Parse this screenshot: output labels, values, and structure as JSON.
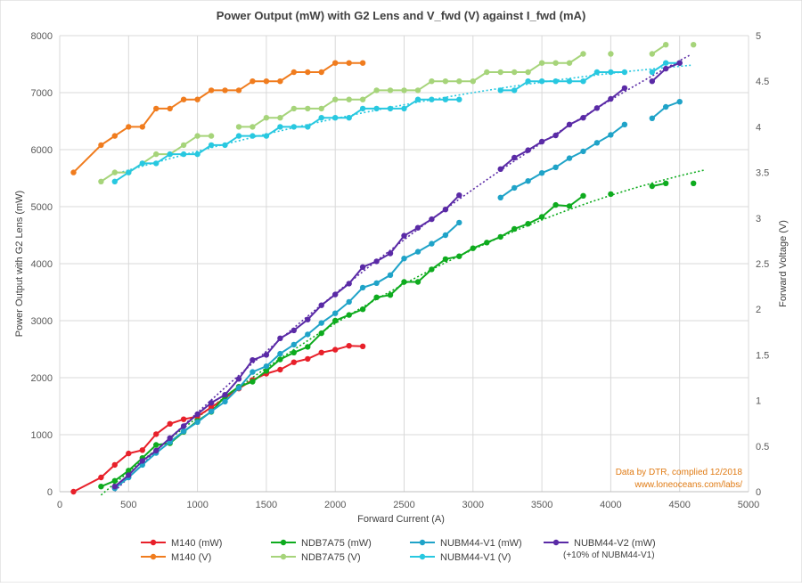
{
  "chart_data": {
    "type": "line",
    "title": "Power Output (mW) with G2 Lens and V_fwd (V) against I_fwd (mA)",
    "xlabel": "Forward Current (A)",
    "ylabel_left": "Power Output with G2 Lens (mW)",
    "ylabel_right": "Forward Voltage (V)",
    "xlim": [
      0,
      5000
    ],
    "ylim_left": [
      0,
      8000
    ],
    "ylim_right": [
      0,
      5
    ],
    "x_ticks": [
      "0",
      "500",
      "1000",
      "1500",
      "2000",
      "2500",
      "3000",
      "3500",
      "4000",
      "4500",
      "5000"
    ],
    "y_left_ticks": [
      "0",
      "1000",
      "2000",
      "3000",
      "4000",
      "5000",
      "6000",
      "7000",
      "8000"
    ],
    "y_right_ticks": [
      "0",
      "0.5",
      "1",
      "1.5",
      "2",
      "2.5",
      "3",
      "3.5",
      "4",
      "4.5",
      "5"
    ],
    "grid": true,
    "legend_position": "bottom",
    "annotation": [
      "Data by DTR, complied 12/2018",
      "www.loneoceans.com/labs/"
    ],
    "series": [
      {
        "name": "M140 (mW)",
        "axis": "left",
        "color": "#e8202a",
        "trend": false,
        "points": [
          [
            100,
            0
          ],
          [
            300,
            250
          ],
          [
            400,
            470
          ],
          [
            500,
            670
          ],
          [
            600,
            730
          ],
          [
            700,
            1010
          ],
          [
            800,
            1190
          ],
          [
            900,
            1270
          ],
          [
            1000,
            1320
          ],
          [
            1100,
            1480
          ],
          [
            1200,
            1640
          ],
          [
            1300,
            1810
          ],
          [
            1400,
            1960
          ],
          [
            1500,
            2070
          ],
          [
            1600,
            2140
          ],
          [
            1700,
            2270
          ],
          [
            1800,
            2330
          ],
          [
            1900,
            2440
          ],
          [
            2000,
            2490
          ],
          [
            2100,
            2560
          ],
          [
            2200,
            2550
          ]
        ]
      },
      {
        "name": "M140 (V)",
        "axis": "right",
        "color": "#f07c1e",
        "trend": false,
        "points": [
          [
            100,
            3.5
          ],
          [
            300,
            3.8
          ],
          [
            400,
            3.9
          ],
          [
            500,
            4.0
          ],
          [
            600,
            4.0
          ],
          [
            700,
            4.2
          ],
          [
            800,
            4.2
          ],
          [
            900,
            4.3
          ],
          [
            1000,
            4.3
          ],
          [
            1100,
            4.4
          ],
          [
            1200,
            4.4
          ],
          [
            1300,
            4.4
          ],
          [
            1400,
            4.5
          ],
          [
            1500,
            4.5
          ],
          [
            1600,
            4.5
          ],
          [
            1700,
            4.6
          ],
          [
            1800,
            4.6
          ],
          [
            1900,
            4.6
          ],
          [
            2000,
            4.7
          ],
          [
            2100,
            4.7
          ],
          [
            2200,
            4.7
          ]
        ]
      },
      {
        "name": "NDB7A75 (mW)",
        "axis": "left",
        "color": "#0eab1e",
        "trend": true,
        "points": [
          [
            300,
            90
          ],
          [
            400,
            190
          ],
          [
            500,
            370
          ],
          [
            600,
            590
          ],
          [
            700,
            820
          ],
          [
            800,
            850
          ],
          [
            900,
            1050
          ],
          [
            1000,
            1240
          ],
          [
            1100,
            1400
          ],
          [
            1200,
            1670
          ],
          [
            1300,
            1840
          ],
          [
            1400,
            1930
          ],
          [
            1500,
            2120
          ],
          [
            1600,
            2320
          ],
          [
            1700,
            2440
          ],
          [
            1800,
            2540
          ],
          [
            1900,
            2780
          ],
          [
            2000,
            3000
          ],
          [
            2100,
            3100
          ],
          [
            2200,
            3200
          ],
          [
            2300,
            3410
          ],
          [
            2400,
            3450
          ],
          [
            2500,
            3680
          ],
          [
            2600,
            3680
          ],
          [
            2700,
            3900
          ],
          [
            2800,
            4080
          ],
          [
            2900,
            4130
          ],
          [
            3000,
            4270
          ],
          [
            3100,
            4370
          ],
          [
            3200,
            4470
          ],
          [
            3300,
            4610
          ],
          [
            3400,
            4700
          ],
          [
            3500,
            4820
          ],
          [
            3600,
            5030
          ],
          [
            3700,
            5010
          ],
          [
            3800,
            5190
          ],
          [
            null,
            null
          ],
          [
            4000,
            5220
          ],
          [
            null,
            null
          ],
          [
            4300,
            5360
          ],
          [
            4400,
            5410
          ],
          [
            null,
            null
          ],
          [
            4600,
            5410
          ]
        ]
      },
      {
        "name": "NDB7A75 (V)",
        "axis": "right",
        "color": "#a6d47a",
        "trend": false,
        "points": [
          [
            300,
            3.4
          ],
          [
            400,
            3.5
          ],
          [
            500,
            3.5
          ],
          [
            600,
            3.6
          ],
          [
            700,
            3.7
          ],
          [
            800,
            3.7
          ],
          [
            900,
            3.8
          ],
          [
            1000,
            3.9
          ],
          [
            1100,
            3.9
          ],
          [
            null,
            null
          ],
          [
            1300,
            4.0
          ],
          [
            1400,
            4.0
          ],
          [
            1500,
            4.1
          ],
          [
            1600,
            4.1
          ],
          [
            1700,
            4.2
          ],
          [
            1800,
            4.2
          ],
          [
            1900,
            4.2
          ],
          [
            2000,
            4.3
          ],
          [
            2100,
            4.3
          ],
          [
            2200,
            4.3
          ],
          [
            2300,
            4.4
          ],
          [
            2400,
            4.4
          ],
          [
            2500,
            4.4
          ],
          [
            2600,
            4.4
          ],
          [
            2700,
            4.5
          ],
          [
            2800,
            4.5
          ],
          [
            2900,
            4.5
          ],
          [
            3000,
            4.5
          ],
          [
            3100,
            4.6
          ],
          [
            3200,
            4.6
          ],
          [
            3300,
            4.6
          ],
          [
            3400,
            4.6
          ],
          [
            3500,
            4.7
          ],
          [
            3600,
            4.7
          ],
          [
            3700,
            4.7
          ],
          [
            3800,
            4.8
          ],
          [
            null,
            null
          ],
          [
            4000,
            4.8
          ],
          [
            null,
            null
          ],
          [
            4300,
            4.8
          ],
          [
            4400,
            4.9
          ],
          [
            null,
            null
          ],
          [
            4600,
            4.9
          ]
        ]
      },
      {
        "name": "NUBM44-V1 (mW)",
        "axis": "left",
        "color": "#1fa3c8",
        "trend": false,
        "points": [
          [
            400,
            60
          ],
          [
            500,
            250
          ],
          [
            600,
            470
          ],
          [
            700,
            680
          ],
          [
            800,
            870
          ],
          [
            900,
            1060
          ],
          [
            1000,
            1220
          ],
          [
            1100,
            1410
          ],
          [
            1200,
            1580
          ],
          [
            1300,
            1820
          ],
          [
            1400,
            2100
          ],
          [
            1500,
            2200
          ],
          [
            1600,
            2420
          ],
          [
            1700,
            2580
          ],
          [
            1800,
            2760
          ],
          [
            1900,
            2960
          ],
          [
            2000,
            3130
          ],
          [
            2100,
            3330
          ],
          [
            2200,
            3580
          ],
          [
            2300,
            3660
          ],
          [
            2400,
            3800
          ],
          [
            2500,
            4090
          ],
          [
            2600,
            4210
          ],
          [
            2700,
            4350
          ],
          [
            2800,
            4500
          ],
          [
            2900,
            4720
          ],
          [
            null,
            null
          ],
          [
            3200,
            5160
          ],
          [
            3300,
            5330
          ],
          [
            3400,
            5450
          ],
          [
            3500,
            5590
          ],
          [
            3600,
            5690
          ],
          [
            3700,
            5850
          ],
          [
            3800,
            5970
          ],
          [
            3900,
            6120
          ],
          [
            4000,
            6260
          ],
          [
            4100,
            6440
          ],
          [
            null,
            null
          ],
          [
            4300,
            6550
          ],
          [
            4400,
            6750
          ],
          [
            4500,
            6840
          ]
        ]
      },
      {
        "name": "NUBM44-V1 (V)",
        "axis": "right",
        "color": "#28c8e0",
        "trend": true,
        "points": [
          [
            400,
            3.4
          ],
          [
            500,
            3.5
          ],
          [
            600,
            3.6
          ],
          [
            700,
            3.6
          ],
          [
            800,
            3.7
          ],
          [
            900,
            3.7
          ],
          [
            1000,
            3.7
          ],
          [
            1100,
            3.8
          ],
          [
            1200,
            3.8
          ],
          [
            1300,
            3.9
          ],
          [
            1400,
            3.9
          ],
          [
            1500,
            3.9
          ],
          [
            1600,
            4.0
          ],
          [
            1700,
            4.0
          ],
          [
            1800,
            4.0
          ],
          [
            1900,
            4.1
          ],
          [
            2000,
            4.1
          ],
          [
            2100,
            4.1
          ],
          [
            2200,
            4.2
          ],
          [
            2300,
            4.2
          ],
          [
            2400,
            4.2
          ],
          [
            2500,
            4.2
          ],
          [
            2600,
            4.3
          ],
          [
            2700,
            4.3
          ],
          [
            2800,
            4.3
          ],
          [
            2900,
            4.3
          ],
          [
            null,
            null
          ],
          [
            3200,
            4.4
          ],
          [
            3300,
            4.4
          ],
          [
            3400,
            4.5
          ],
          [
            3500,
            4.5
          ],
          [
            3600,
            4.5
          ],
          [
            3700,
            4.5
          ],
          [
            3800,
            4.5
          ],
          [
            3900,
            4.6
          ],
          [
            4000,
            4.6
          ],
          [
            4100,
            4.6
          ],
          [
            null,
            null
          ],
          [
            4300,
            4.6
          ],
          [
            4400,
            4.7
          ],
          [
            4500,
            4.7
          ]
        ]
      },
      {
        "name": "NUBM44-V2 (mW)",
        "axis": "left",
        "color": "#5a2aa6",
        "trend": true,
        "points": [
          [
            400,
            90
          ],
          [
            500,
            290
          ],
          [
            600,
            540
          ],
          [
            700,
            720
          ],
          [
            800,
            940
          ],
          [
            900,
            1150
          ],
          [
            1000,
            1360
          ],
          [
            1100,
            1560
          ],
          [
            1200,
            1700
          ],
          [
            1300,
            1980
          ],
          [
            1400,
            2310
          ],
          [
            1500,
            2400
          ],
          [
            1600,
            2690
          ],
          [
            1700,
            2830
          ],
          [
            1800,
            3020
          ],
          [
            1900,
            3270
          ],
          [
            2000,
            3460
          ],
          [
            2100,
            3650
          ],
          [
            2200,
            3940
          ],
          [
            2300,
            4040
          ],
          [
            2400,
            4180
          ],
          [
            2500,
            4490
          ],
          [
            2600,
            4630
          ],
          [
            2700,
            4780
          ],
          [
            2800,
            4950
          ],
          [
            2900,
            5200
          ],
          [
            null,
            null
          ],
          [
            3200,
            5660
          ],
          [
            3300,
            5860
          ],
          [
            3400,
            5990
          ],
          [
            3500,
            6140
          ],
          [
            3600,
            6250
          ],
          [
            3700,
            6440
          ],
          [
            3800,
            6560
          ],
          [
            3900,
            6730
          ],
          [
            4000,
            6890
          ],
          [
            4100,
            7080
          ],
          [
            null,
            null
          ],
          [
            4300,
            7200
          ],
          [
            4400,
            7420
          ],
          [
            4500,
            7520
          ]
        ]
      }
    ],
    "legend": [
      {
        "label": "M140 (mW)",
        "color": "#e8202a"
      },
      {
        "label": "NDB7A75 (mW)",
        "color": "#0eab1e"
      },
      {
        "label": "NUBM44-V1 (mW)",
        "color": "#1fa3c8"
      },
      {
        "label": "NUBM44-V2 (mW)",
        "color": "#5a2aa6"
      },
      {
        "label": "M140 (V)",
        "color": "#f07c1e"
      },
      {
        "label": "NDB7A75 (V)",
        "color": "#a6d47a"
      },
      {
        "label": "NUBM44-V1 (V)",
        "color": "#28c8e0"
      }
    ],
    "legend_note": "(+10% of NUBM44-V1)"
  }
}
